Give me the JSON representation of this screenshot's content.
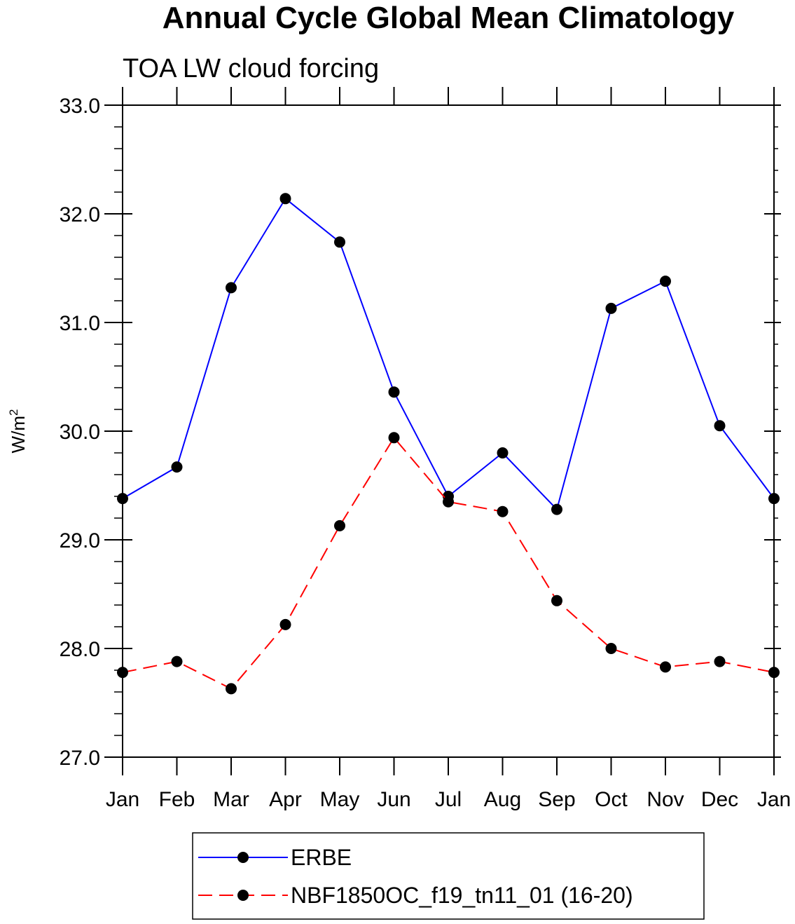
{
  "chart_data": {
    "type": "line",
    "title": "Annual Cycle Global Mean Climatology",
    "subtitle": "TOA LW cloud forcing",
    "xlabel": "",
    "ylabel": "W/m",
    "ylabel_sup": "2",
    "categories": [
      "Jan",
      "Feb",
      "Mar",
      "Apr",
      "May",
      "Jun",
      "Jul",
      "Aug",
      "Sep",
      "Oct",
      "Nov",
      "Dec",
      "Jan"
    ],
    "ylim": [
      27.0,
      33.0
    ],
    "yticks": [
      "27.0",
      "28.0",
      "29.0",
      "30.0",
      "31.0",
      "32.0",
      "33.0"
    ],
    "series": [
      {
        "name": "ERBE",
        "color": "#0000ff",
        "dash": "solid",
        "values": [
          29.38,
          29.67,
          31.32,
          32.14,
          31.74,
          30.36,
          29.4,
          29.8,
          29.28,
          31.13,
          31.38,
          30.05,
          29.38
        ]
      },
      {
        "name": "NBF1850OC_f19_tn11_01 (16-20)",
        "color": "#ff0000",
        "dash": "dashed",
        "values": [
          27.78,
          27.88,
          27.63,
          28.22,
          29.13,
          29.94,
          29.35,
          29.26,
          28.44,
          28.0,
          27.83,
          27.88,
          27.78
        ]
      }
    ],
    "legend_position": "bottom-center",
    "grid": false
  }
}
